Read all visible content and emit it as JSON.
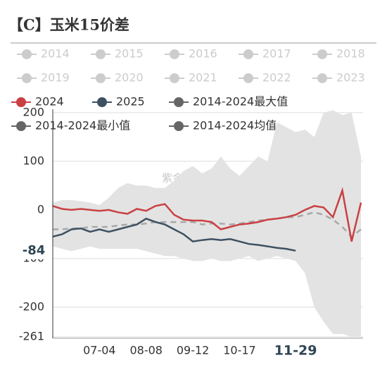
{
  "chart_data": {
    "type": "line",
    "title": "【C】玉米15价差",
    "watermark": "紫金天风期货",
    "categories": [
      null,
      null,
      null,
      null,
      null,
      "07-04",
      null,
      null,
      null,
      null,
      "08-08",
      null,
      null,
      null,
      null,
      "09-12",
      null,
      null,
      null,
      null,
      "10-17",
      null,
      null,
      null,
      null,
      null,
      "11-29",
      null,
      null,
      null,
      null,
      null,
      null,
      null
    ],
    "inactive_series": [
      {
        "name": "2014",
        "color": "#cccccc"
      },
      {
        "name": "2015",
        "color": "#cccccc"
      },
      {
        "name": "2016",
        "color": "#cccccc"
      },
      {
        "name": "2017",
        "color": "#cccccc"
      },
      {
        "name": "2018",
        "color": "#cccccc"
      },
      {
        "name": "2019",
        "color": "#cccccc"
      },
      {
        "name": "2020",
        "color": "#cccccc"
      },
      {
        "name": "2021",
        "color": "#cccccc"
      },
      {
        "name": "2022",
        "color": "#cccccc"
      },
      {
        "name": "2023",
        "color": "#cccccc"
      }
    ],
    "series": [
      {
        "name": "2024",
        "color": "#c94043",
        "kind": "line",
        "values": [
          8,
          2,
          0,
          2,
          0,
          -2,
          0,
          -5,
          -8,
          2,
          -2,
          8,
          12,
          -10,
          -20,
          -22,
          -22,
          -25,
          -40,
          -35,
          -30,
          -28,
          -25,
          -20,
          -18,
          -15,
          -10,
          0,
          8,
          5,
          -15,
          40,
          -65,
          15
        ]
      },
      {
        "name": "2025",
        "color": "#3d5161",
        "kind": "line",
        "values": [
          -55,
          -50,
          -40,
          -38,
          -45,
          -40,
          -45,
          -40,
          -35,
          -30,
          -18,
          -25,
          -30,
          -40,
          -50,
          -65,
          -62,
          -60,
          -62,
          -60,
          -65,
          -70,
          -72,
          -75,
          -78,
          -80,
          -84,
          null,
          null,
          null,
          null,
          null,
          null,
          null
        ]
      },
      {
        "name": "2014-2024最大值",
        "color": "#e3e3e3",
        "kind": "band_upper",
        "legend_color": "#666666",
        "values": [
          15,
          20,
          20,
          18,
          15,
          10,
          25,
          45,
          55,
          50,
          50,
          45,
          45,
          60,
          80,
          90,
          75,
          85,
          110,
          85,
          70,
          90,
          110,
          100,
          180,
          170,
          160,
          165,
          150,
          200,
          205,
          195,
          200,
          110
        ]
      },
      {
        "name": "2014-2024最小值",
        "color": "#e3e3e3",
        "kind": "band_lower",
        "legend_color": "#666666",
        "values": [
          -75,
          -80,
          -85,
          -80,
          -75,
          -80,
          -80,
          -80,
          -80,
          -80,
          -85,
          -90,
          -95,
          -95,
          -100,
          -105,
          -105,
          -100,
          -105,
          -105,
          -100,
          -95,
          -105,
          -100,
          -95,
          -100,
          -105,
          -130,
          -200,
          -230,
          -255,
          -255,
          -261,
          -261
        ]
      },
      {
        "name": "2014-2024均值",
        "color": "#a8a8a8",
        "kind": "dashed",
        "legend_color": "#666666",
        "values": [
          -40,
          -40,
          -38,
          -38,
          -35,
          -35,
          -35,
          -32,
          -30,
          -30,
          -28,
          -25,
          -25,
          -25,
          -25,
          -25,
          -30,
          -28,
          -28,
          -30,
          -28,
          -25,
          -22,
          -20,
          -18,
          -15,
          -15,
          -10,
          -5,
          -10,
          -20,
          -35,
          -55,
          -40
        ]
      }
    ],
    "highlight_value": -84,
    "ylim": [
      -261,
      207
    ],
    "yticks": [
      200,
      100,
      0,
      -100,
      -200,
      -261
    ],
    "grid": true
  }
}
